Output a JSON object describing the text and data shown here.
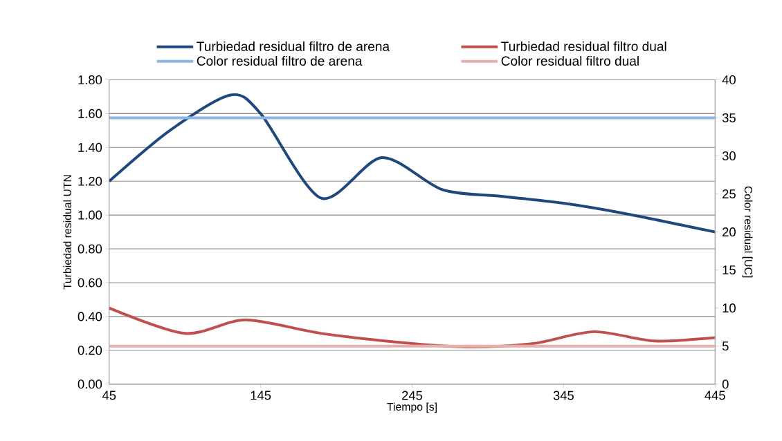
{
  "chart_data": {
    "type": "line",
    "xlabel": "Tiempo [s]",
    "ylabel": "Turbiedad residual UTN",
    "y2label": "Color residual [UC]",
    "xlim": [
      45,
      445
    ],
    "xticks": [
      45,
      145,
      245,
      345,
      445
    ],
    "ylim": [
      0,
      1.8
    ],
    "yticks": [
      {
        "value": 0,
        "label": "0.00"
      },
      {
        "value": 0.2,
        "label": "0.20"
      },
      {
        "value": 0.4,
        "label": "0.40"
      },
      {
        "value": 0.6,
        "label": "0.60"
      },
      {
        "value": 0.8,
        "label": "0.80"
      },
      {
        "value": 1.0,
        "label": "1.00"
      },
      {
        "value": 1.2,
        "label": "1.20"
      },
      {
        "value": 1.4,
        "label": "1.40"
      },
      {
        "value": 1.6,
        "label": "1.60"
      },
      {
        "value": 1.8,
        "label": "1.80"
      }
    ],
    "y2lim": [
      0,
      40
    ],
    "y2ticks": [
      0,
      5,
      10,
      15,
      20,
      25,
      30,
      35,
      40
    ],
    "grid": "y",
    "legend": "top",
    "series": [
      {
        "name": "Turbiedad residual filtro de arena",
        "color": "#1f497d",
        "x": [
          45,
          85,
          125,
          145,
          185,
          225,
          265,
          305,
          345,
          385,
          445
        ],
        "values": [
          1.2,
          1.5,
          1.71,
          1.6,
          1.1,
          1.34,
          1.15,
          1.11,
          1.07,
          1.01,
          0.9
        ]
      },
      {
        "name": "Turbiedad residual filtro dual",
        "color": "#c0504d",
        "x": [
          45,
          95,
          135,
          185,
          245,
          285,
          325,
          365,
          405,
          445
        ],
        "values": [
          0.45,
          0.3,
          0.38,
          0.3,
          0.24,
          0.22,
          0.24,
          0.31,
          0.255,
          0.275
        ]
      },
      {
        "name": "Color residual filtro de arena",
        "color": "#8db4e2",
        "axis": "y2",
        "x": [
          45,
          445
        ],
        "values": [
          35,
          35
        ]
      },
      {
        "name": "Color residual filtro dual",
        "color": "#e6b0aa",
        "axis": "y2",
        "x": [
          45,
          445
        ],
        "values": [
          5,
          5
        ]
      }
    ]
  }
}
